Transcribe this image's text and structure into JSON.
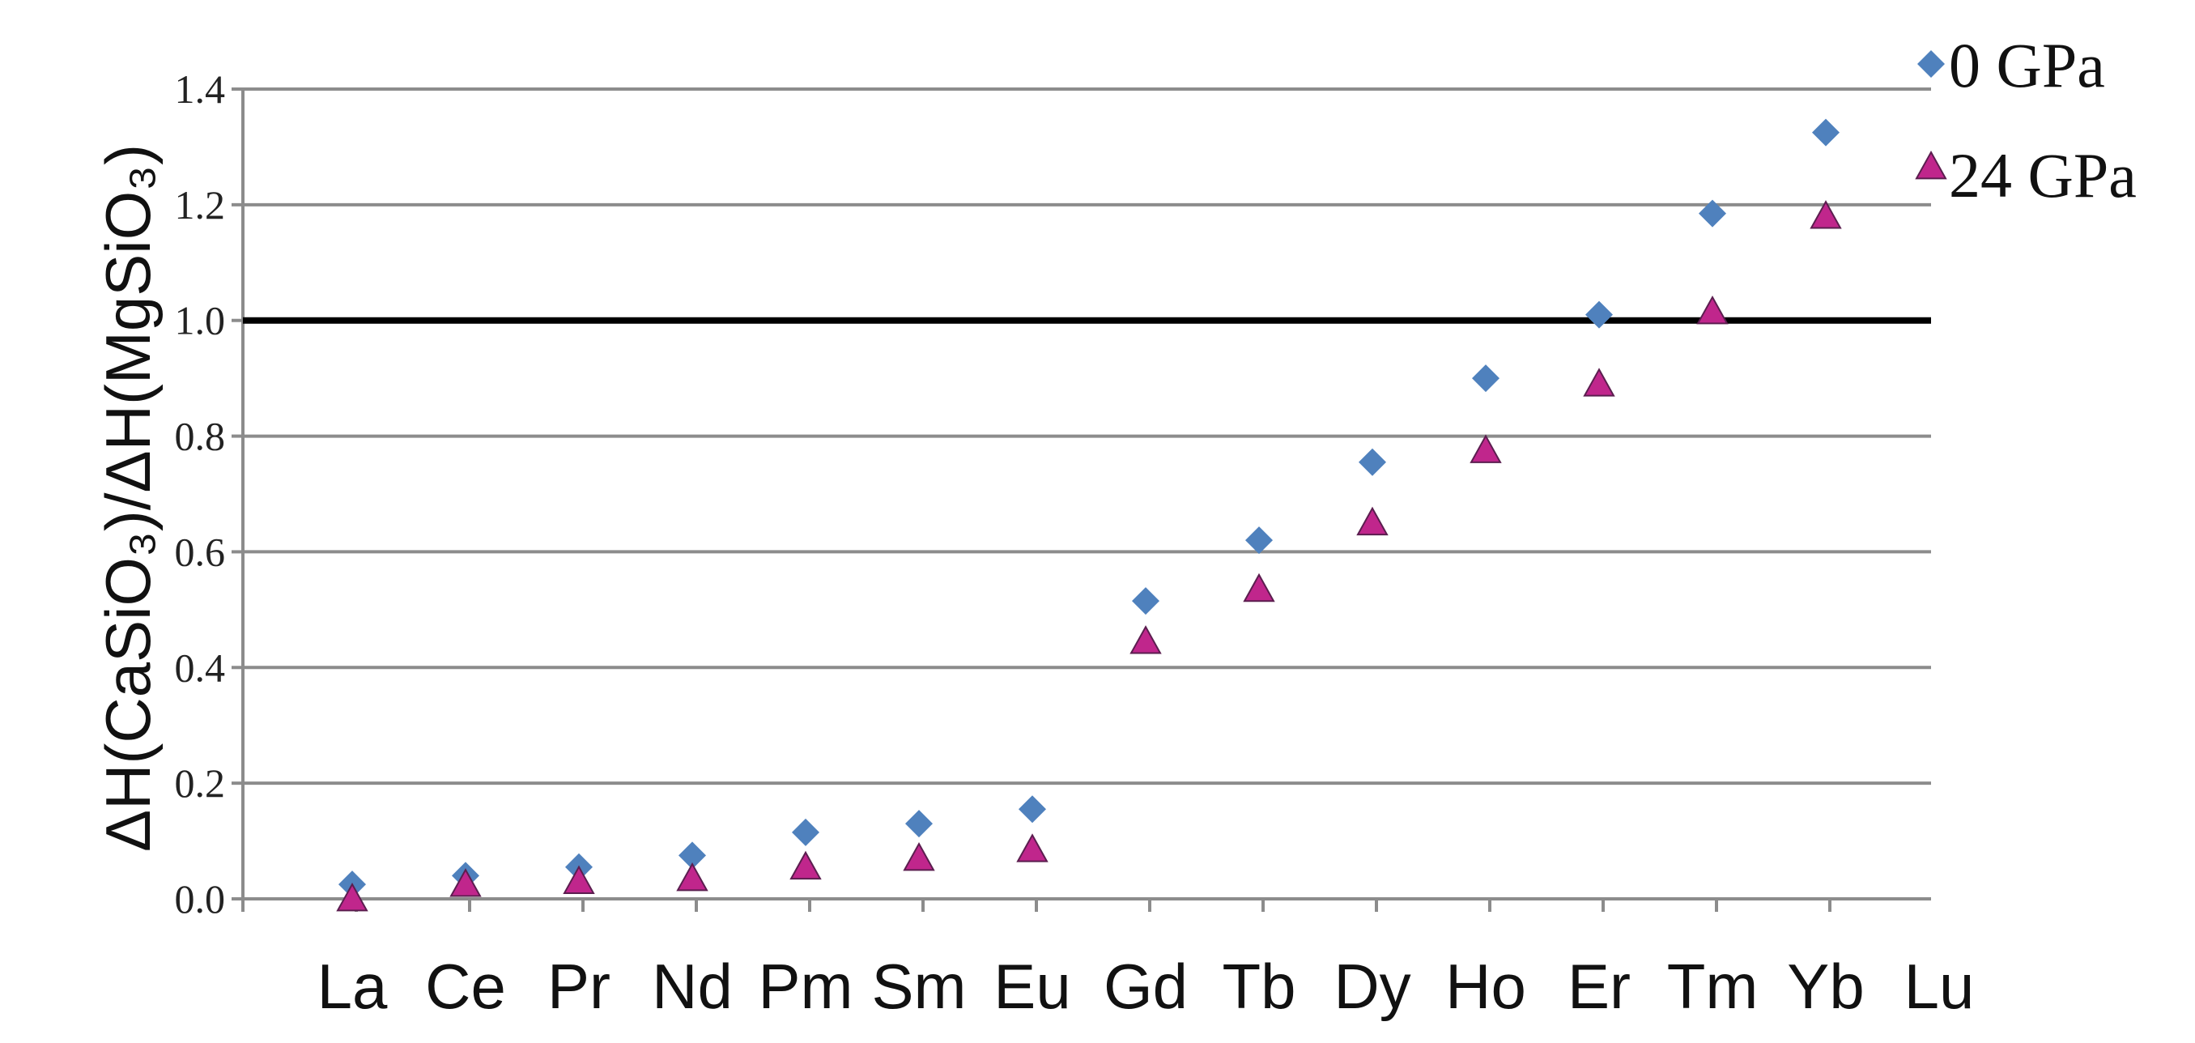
{
  "chart_data": {
    "type": "scatter",
    "ylabel": "ΔH(CaSiO₃)/ΔH(MgSiO₃)",
    "xlabel": "",
    "ylim": [
      0.0,
      1.4
    ],
    "yticks": [
      0.0,
      0.2,
      0.4,
      0.6,
      0.8,
      1.0,
      1.2,
      1.4
    ],
    "ytick_labels": [
      "0.0",
      "0.2",
      "0.4",
      "0.6",
      "0.8",
      "1.0",
      "1.2",
      "1.4"
    ],
    "grid": true,
    "reference_line": 1.0,
    "legend_position": "top-right",
    "categories": [
      "La",
      "Ce",
      "Pr",
      "Nd",
      "Pm",
      "Sm",
      "Eu",
      "Gd",
      "Tb",
      "Dy",
      "Ho",
      "Er",
      "Tm",
      "Yb",
      "Lu"
    ],
    "series": [
      {
        "name": "0 GPa",
        "marker": "diamond",
        "color": "#4f81bd",
        "values": [
          0.025,
          0.04,
          0.055,
          0.075,
          0.115,
          0.13,
          0.155,
          0.515,
          0.62,
          0.755,
          0.9,
          1.01,
          1.185,
          1.325,
          null
        ]
      },
      {
        "name": "24 GPa",
        "marker": "triangle",
        "color": "#c0268c",
        "values": [
          0.0,
          0.025,
          0.03,
          0.035,
          0.055,
          0.07,
          0.085,
          0.445,
          0.535,
          0.65,
          0.775,
          0.89,
          1.015,
          1.18,
          null
        ]
      }
    ]
  }
}
